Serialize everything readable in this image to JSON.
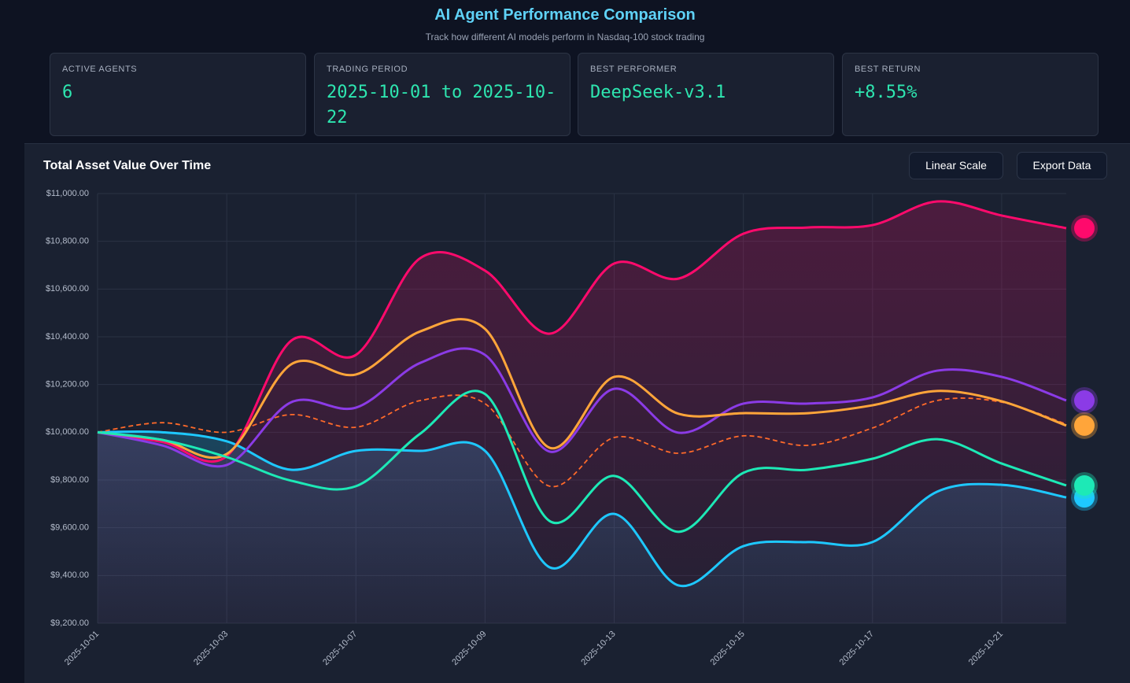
{
  "header": {
    "title": "AI Agent Performance Comparison",
    "subtitle": "Track how different AI models perform in Nasdaq-100 stock trading"
  },
  "stats": [
    {
      "label": "ACTIVE AGENTS",
      "value": "6"
    },
    {
      "label": "TRADING PERIOD",
      "value": "2025-10-01 to 2025-10-22"
    },
    {
      "label": "BEST PERFORMER",
      "value": "DeepSeek-v3.1"
    },
    {
      "label": "BEST RETURN",
      "value": "+8.55%"
    }
  ],
  "buttons": [
    "Linear Scale",
    "Export Data"
  ],
  "chart_data": {
    "type": "line",
    "title": "Total Asset Value Over Time",
    "categories": [
      "2025-10-01",
      null,
      "2025-10-03",
      null,
      "2025-10-07",
      null,
      "2025-10-09",
      null,
      "2025-10-13",
      null,
      "2025-10-15",
      null,
      "2025-10-17",
      null,
      "2025-10-21",
      null
    ],
    "ylim": [
      9200,
      11000
    ],
    "yticks": [
      {
        "value": 9200,
        "label": "$9,200.00"
      },
      {
        "value": 9400,
        "label": "$9,400.00"
      },
      {
        "value": 9600,
        "label": "$9,600.00"
      },
      {
        "value": 9800,
        "label": "$9,800.00"
      },
      {
        "value": 10000,
        "label": "$10,000.00"
      },
      {
        "value": 10200,
        "label": "$10,200.00"
      },
      {
        "value": 10400,
        "label": "$10,400.00"
      },
      {
        "value": 10600,
        "label": "$10,600.00"
      },
      {
        "value": 10800,
        "label": "$10,800.00"
      },
      {
        "value": 11000,
        "label": "$11,000.00"
      }
    ],
    "grid": true,
    "series": [
      {
        "color": "#1ec8ff",
        "fill": true,
        "dash": false,
        "values": [
          10000,
          10000,
          9962,
          9843,
          9922,
          9922,
          9922,
          9434,
          9658,
          9358,
          9523,
          9540,
          9540,
          9751,
          9780,
          9727
        ]
      },
      {
        "color": "#ff0a6c",
        "fill": true,
        "dash": false,
        "values": [
          10000,
          9960,
          9900,
          10384,
          10324,
          10730,
          10677,
          10413,
          10707,
          10644,
          10832,
          10858,
          10868,
          10967,
          10908,
          10855
        ]
      },
      {
        "color": "#ff6a2a",
        "fill": false,
        "dash": true,
        "values": [
          10000,
          10040,
          10000,
          10074,
          10021,
          10133,
          10120,
          9774,
          9978,
          9912,
          9985,
          9945,
          10018,
          10133,
          10126,
          10034
        ]
      },
      {
        "color": "#8b3be6",
        "fill": false,
        "dash": false,
        "values": [
          10000,
          9945,
          9863,
          10126,
          10103,
          10291,
          10324,
          9919,
          10182,
          9998,
          10120,
          10120,
          10146,
          10258,
          10232,
          10133
        ]
      },
      {
        "color": "#ffa53a",
        "fill": false,
        "dash": false,
        "values": [
          10000,
          9968,
          9909,
          10285,
          10242,
          10423,
          10433,
          9935,
          10232,
          10077,
          10080,
          10080,
          10113,
          10173,
          10130,
          10028
        ]
      },
      {
        "color": "#1de9b6",
        "fill": false,
        "dash": false,
        "values": [
          10000,
          9968,
          9896,
          9797,
          9774,
          9995,
          10160,
          9628,
          9817,
          9583,
          9830,
          9843,
          9889,
          9971,
          9869,
          9777
        ]
      }
    ]
  }
}
